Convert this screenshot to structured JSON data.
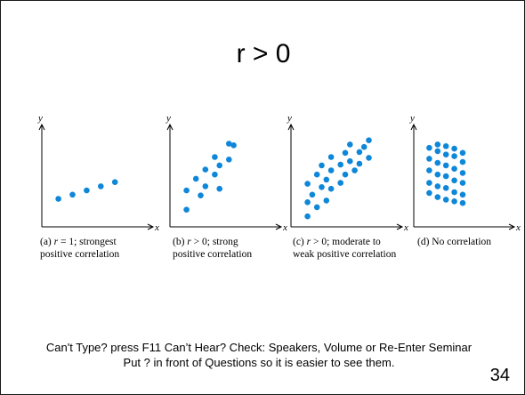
{
  "slide": {
    "title": "r > 0",
    "footer_line1": "Can't Type? press F11 Can’t Hear? Check: Speakers, Volume or Re-Enter Seminar",
    "footer_line2": "Put ? in front of Questions so it is easier to see them.",
    "page_number": "34"
  },
  "chart_data": [
    {
      "type": "scatter",
      "xlabel": "x",
      "ylabel": "y",
      "caption_prefix": "(a) ",
      "caption_var": "r",
      "caption_rest": " = 1; strongest",
      "caption_line2": "positive correlation",
      "color": "#0f87d9",
      "xlim": [
        0,
        10
      ],
      "ylim": [
        0,
        10
      ],
      "x": [
        1,
        2.5,
        4,
        5.5,
        7
      ],
      "y": [
        2.5,
        3.0,
        3.5,
        4.0,
        4.5
      ]
    },
    {
      "type": "scatter",
      "xlabel": "x",
      "ylabel": "y",
      "caption_prefix": "(b) ",
      "caption_var": "r",
      "caption_rest": " > 0; strong",
      "caption_line2": "positive correlation",
      "color": "#0f87d9",
      "xlim": [
        0,
        10
      ],
      "ylim": [
        0,
        10
      ],
      "x": [
        1,
        1,
        2,
        2.5,
        3,
        3,
        4,
        4,
        4.5,
        4.5,
        5.5,
        5.5,
        6
      ],
      "y": [
        1.2,
        3.5,
        4.9,
        2.9,
        6.0,
        4.0,
        5.4,
        7.5,
        3.7,
        6.5,
        7.2,
        9.1,
        8.9
      ]
    },
    {
      "type": "scatter",
      "xlabel": "x",
      "ylabel": "y",
      "caption_prefix": "(c) ",
      "caption_var": "r",
      "caption_rest": " > 0; moderate to",
      "caption_line2": "weak positive correlation",
      "color": "#0f87d9",
      "xlim": [
        0,
        10
      ],
      "ylim": [
        0,
        10
      ],
      "x": [
        1,
        1,
        1,
        1.5,
        2,
        2,
        2.5,
        2.5,
        3,
        3,
        3.5,
        3.5,
        3.5,
        4.5,
        4.5,
        5,
        5,
        5.5,
        5.5,
        6,
        6.5,
        6.5,
        7,
        7.5,
        7.5
      ],
      "y": [
        0.4,
        2.1,
        4.3,
        3.0,
        1.5,
        5.4,
        3.9,
        6.5,
        2.3,
        4.8,
        3.7,
        5.9,
        7.5,
        4.4,
        6.6,
        5.4,
        8.0,
        7.0,
        9.0,
        5.9,
        8.1,
        6.7,
        8.7,
        7.4,
        9.5
      ]
    },
    {
      "type": "scatter",
      "xlabel": "x",
      "ylabel": "y",
      "caption_prefix": "(d) ",
      "caption_var": "",
      "caption_rest": "No correlation",
      "caption_line2": "",
      "color": "#0f87d9",
      "xlim": [
        0,
        10
      ],
      "ylim": [
        0,
        10
      ],
      "x": [
        1,
        1,
        1,
        1,
        1,
        2,
        2,
        2,
        2,
        2,
        2,
        3,
        3,
        3,
        3,
        3,
        3,
        4,
        4,
        4,
        4,
        4,
        4,
        5,
        5,
        5,
        5,
        5,
        5
      ],
      "y": [
        3.2,
        4.4,
        5.9,
        7.3,
        8.6,
        2.7,
        4.0,
        5.4,
        6.8,
        8.2,
        9.0,
        2.4,
        3.8,
        5.2,
        6.5,
        7.8,
        8.8,
        2.2,
        3.3,
        4.7,
        6.1,
        7.6,
        8.5,
        2.0,
        3.0,
        4.4,
        5.6,
        6.9,
        8.0
      ]
    }
  ]
}
